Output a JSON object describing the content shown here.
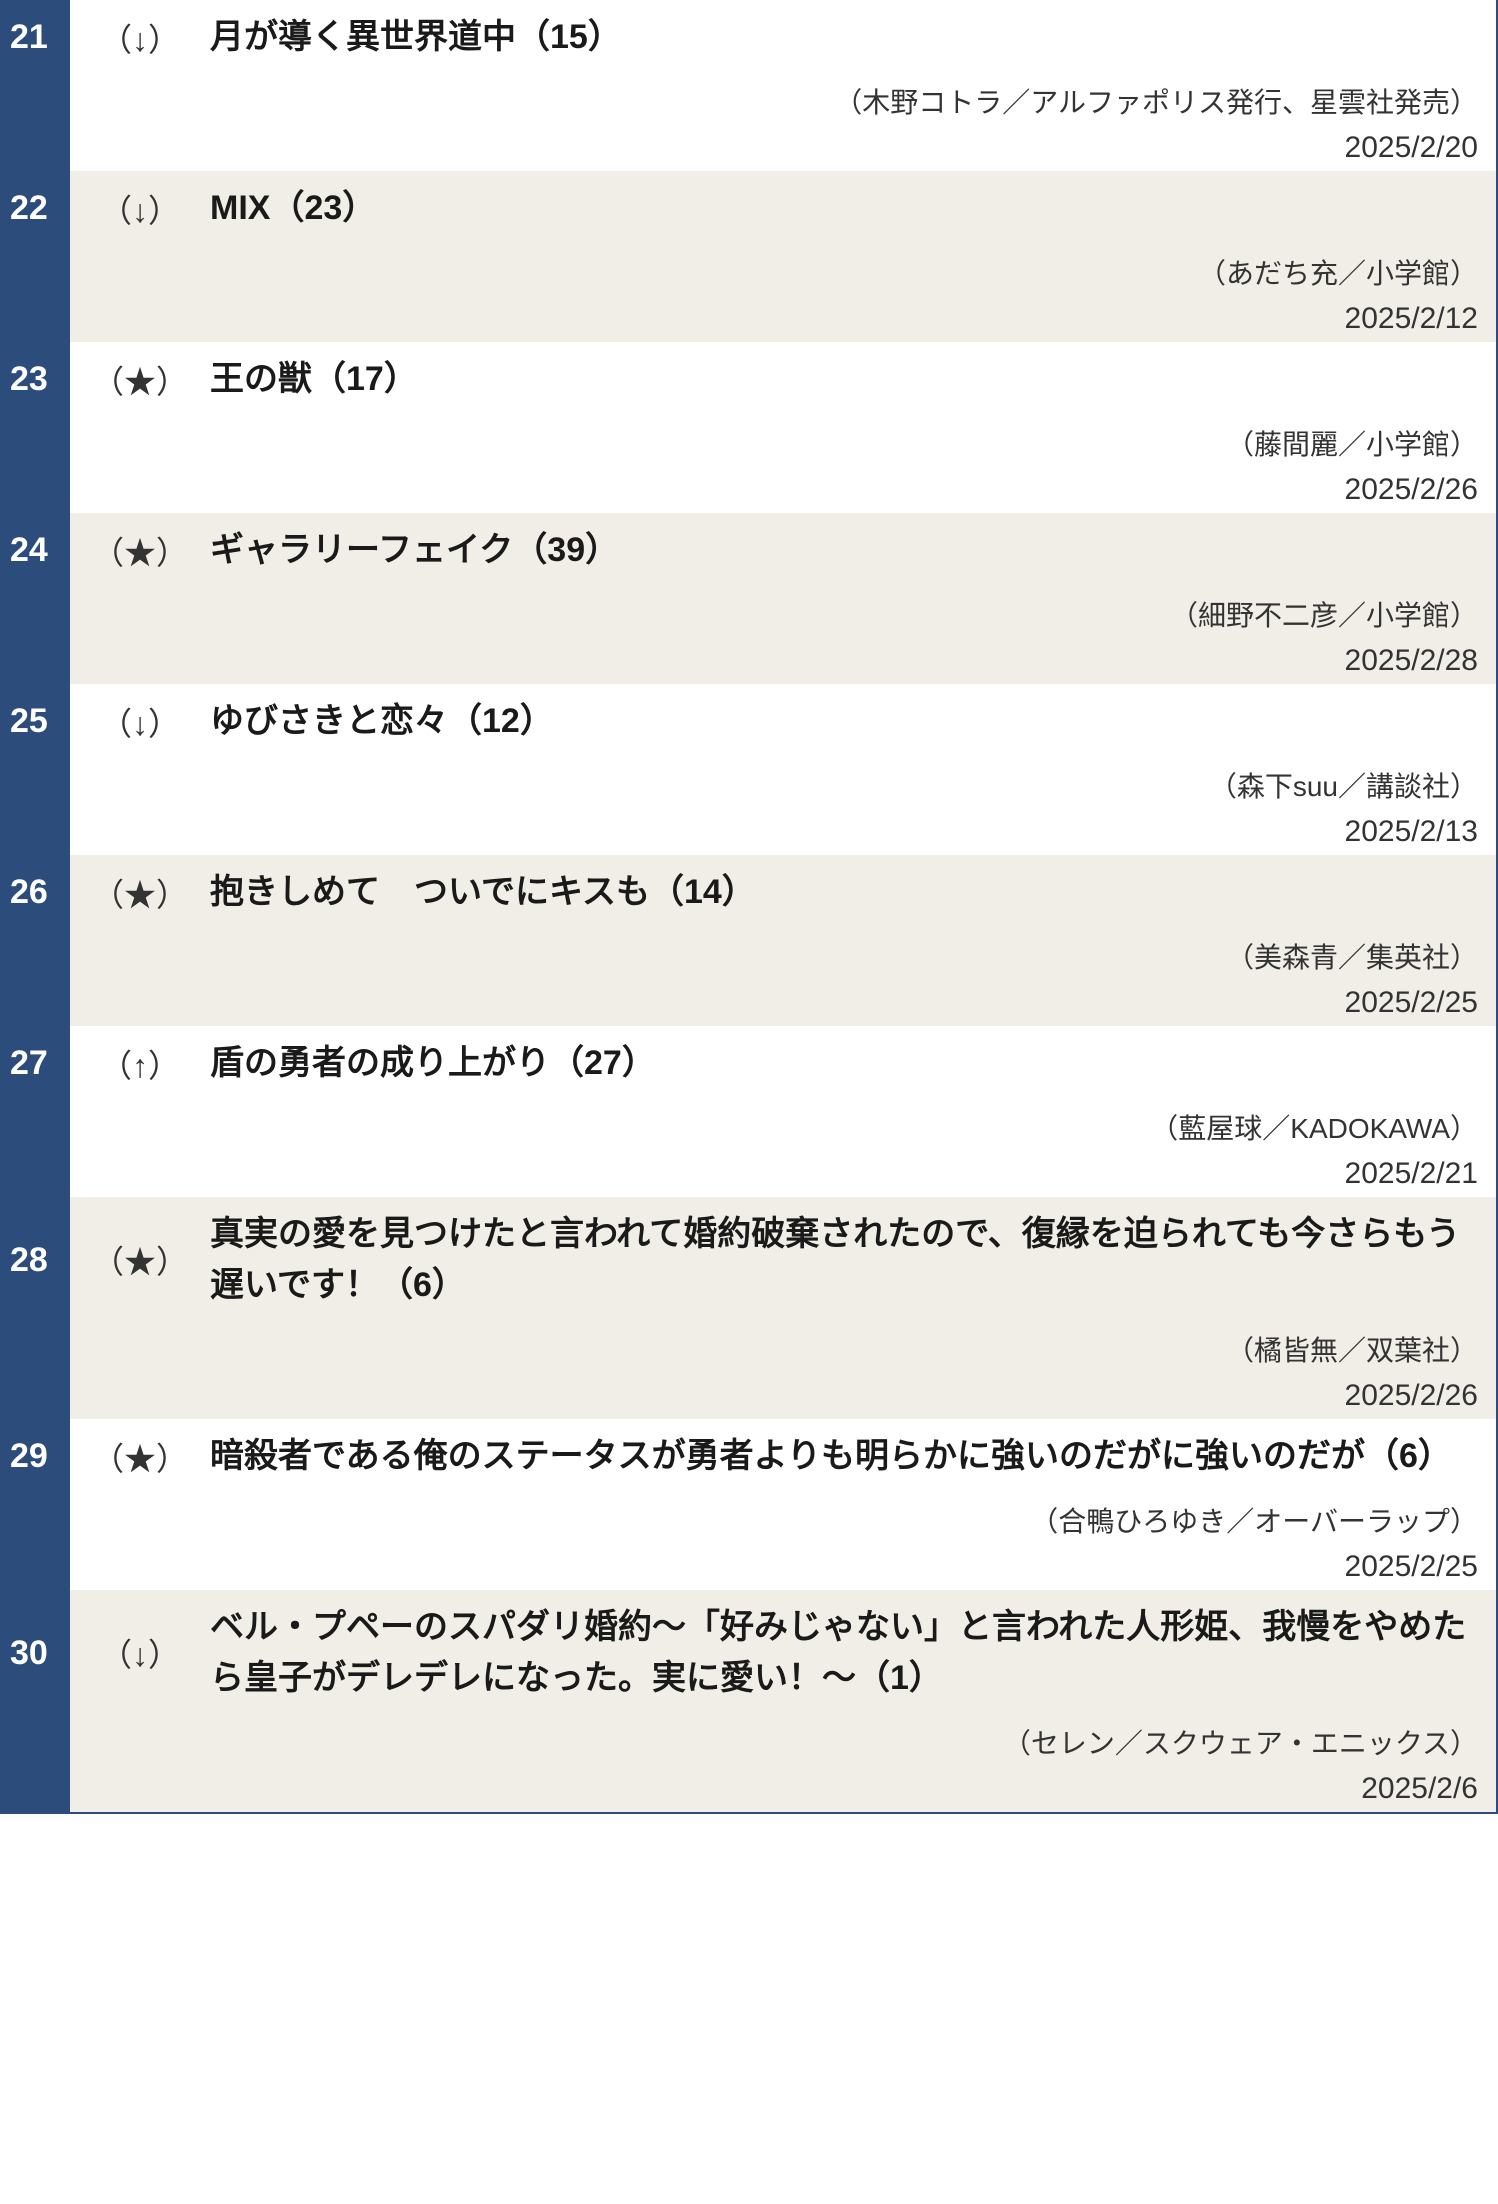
{
  "colors": {
    "rank_bg": "#2c4c7c",
    "rank_text": "#ffffff",
    "row_odd_bg": "#f0eee6",
    "row_even_bg": "#ffffff",
    "border": "#2c4c7c",
    "text_primary": "#1a1a1a",
    "text_secondary": "#333333"
  },
  "typography": {
    "rank_fontsize": 34,
    "trend_fontsize": 32,
    "title_fontsize": 34,
    "credits_fontsize": 28,
    "date_fontsize": 30,
    "title_weight": "bold"
  },
  "rows": [
    {
      "rank": "21",
      "trend": "（↓）",
      "title": "月が導く異世界道中（15）",
      "credits": "（木野コトラ／アルファポリス発行、星雲社発売）",
      "date": "2025/2/20",
      "bg": "even"
    },
    {
      "rank": "22",
      "trend": "（↓）",
      "title": "MIX（23）",
      "credits": "（あだち充／小学館）",
      "date": "2025/2/12",
      "bg": "odd"
    },
    {
      "rank": "23",
      "trend": "（★）",
      "title": "王の獣（17）",
      "credits": "（藤間麗／小学館）",
      "date": "2025/2/26",
      "bg": "even"
    },
    {
      "rank": "24",
      "trend": "（★）",
      "title": "ギャラリーフェイク（39）",
      "credits": "（細野不二彦／小学館）",
      "date": "2025/2/28",
      "bg": "odd"
    },
    {
      "rank": "25",
      "trend": "（↓）",
      "title": "ゆびさきと恋々（12）",
      "credits": "（森下suu／講談社）",
      "date": "2025/2/13",
      "bg": "even"
    },
    {
      "rank": "26",
      "trend": "（★）",
      "title": "抱きしめて　ついでにキスも（14）",
      "credits": "（美森青／集英社）",
      "date": "2025/2/25",
      "bg": "odd"
    },
    {
      "rank": "27",
      "trend": "（↑）",
      "title": "盾の勇者の成り上がり（27）",
      "credits": "（藍屋球／KADOKAWA）",
      "date": "2025/2/21",
      "bg": "even"
    },
    {
      "rank": "28",
      "trend": "（★）",
      "title": "真実の愛を見つけたと言われて婚約破棄されたので、復縁を迫られても今さらもう遅いです！（6）",
      "credits": "（橘皆無／双葉社）",
      "date": "2025/2/26",
      "bg": "odd"
    },
    {
      "rank": "29",
      "trend": "（★）",
      "title": "暗殺者である俺のステータスが勇者よりも明らかに強いのだがに強いのだが（6）",
      "credits": "（合鴨ひろゆき／オーバーラップ）",
      "date": "2025/2/25",
      "bg": "even"
    },
    {
      "rank": "30",
      "trend": "（↓）",
      "title": "ベル・プペーのスパダリ婚約～「好みじゃない」と言われた人形姫、我慢をやめたら皇子がデレデレになった。実に愛い！～（1）",
      "credits": "（セレン／スクウェア・エニックス）",
      "date": "2025/2/6",
      "bg": "odd"
    }
  ]
}
